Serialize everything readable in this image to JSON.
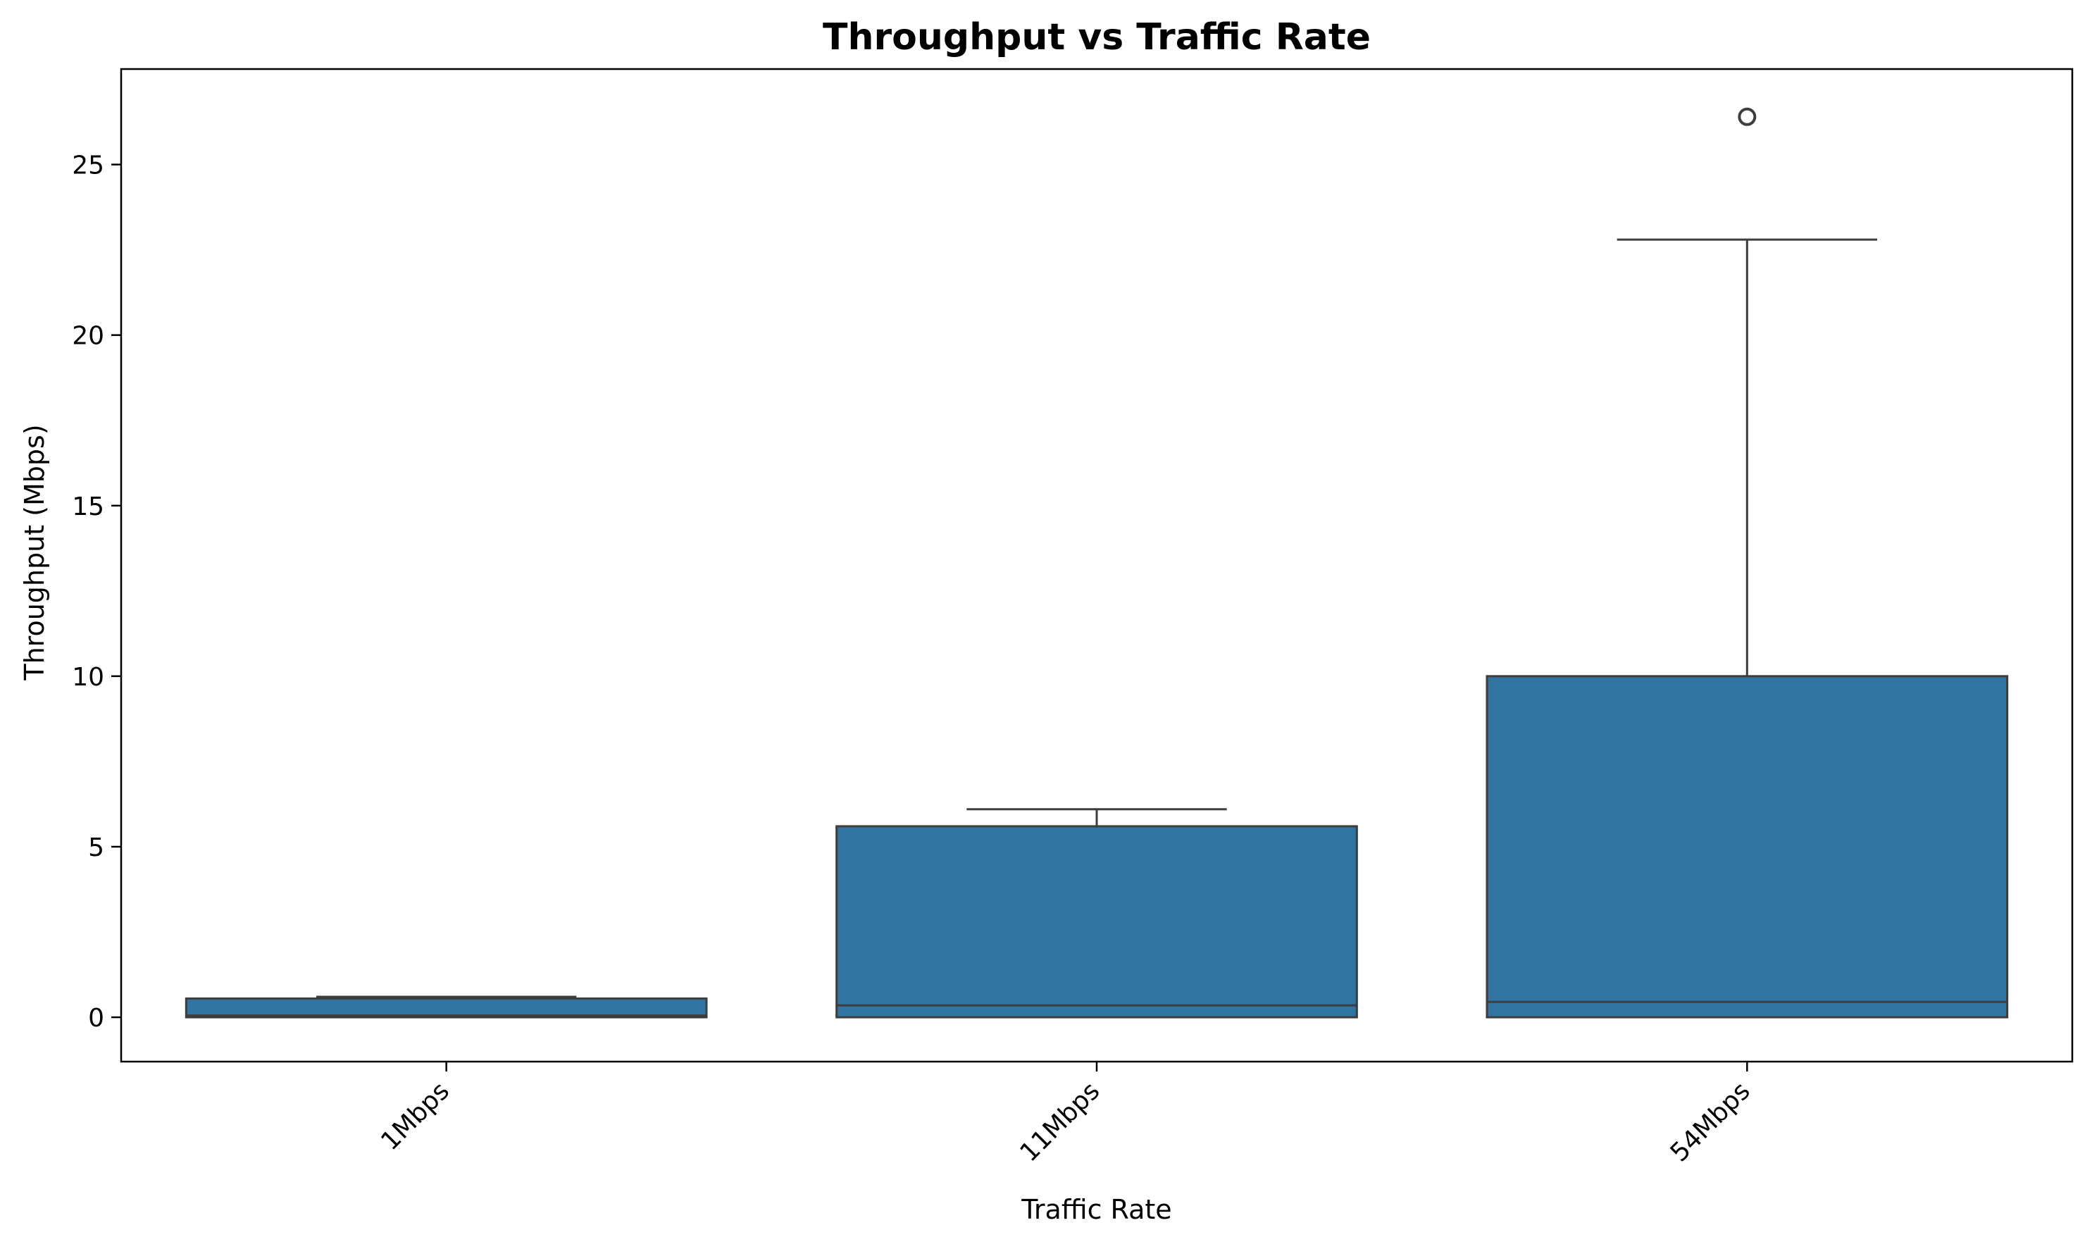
{
  "chart_data": {
    "type": "box",
    "title": "Throughput vs Traffic Rate",
    "xlabel": "Traffic Rate",
    "ylabel": "Throughput (Mbps)",
    "ylim": [
      -1.3,
      27.8
    ],
    "yticks": [
      0,
      5,
      10,
      15,
      20,
      25
    ],
    "categories": [
      "1Mbps",
      "11Mbps",
      "54Mbps"
    ],
    "boxes": [
      {
        "category": "1Mbps",
        "whisker_low": 0.0,
        "q1": 0.0,
        "median": 0.05,
        "q3": 0.55,
        "whisker_high": 0.6,
        "outliers": []
      },
      {
        "category": "11Mbps",
        "whisker_low": 0.0,
        "q1": 0.0,
        "median": 0.35,
        "q3": 5.6,
        "whisker_high": 6.1,
        "outliers": []
      },
      {
        "category": "54Mbps",
        "whisker_low": 0.0,
        "q1": 0.0,
        "median": 0.45,
        "q3": 10.0,
        "whisker_high": 22.8,
        "outliers": [
          26.4
        ]
      }
    ],
    "box_color": "#3274a1",
    "line_color": "#3d3d3d",
    "grid": false,
    "legend": "none"
  }
}
